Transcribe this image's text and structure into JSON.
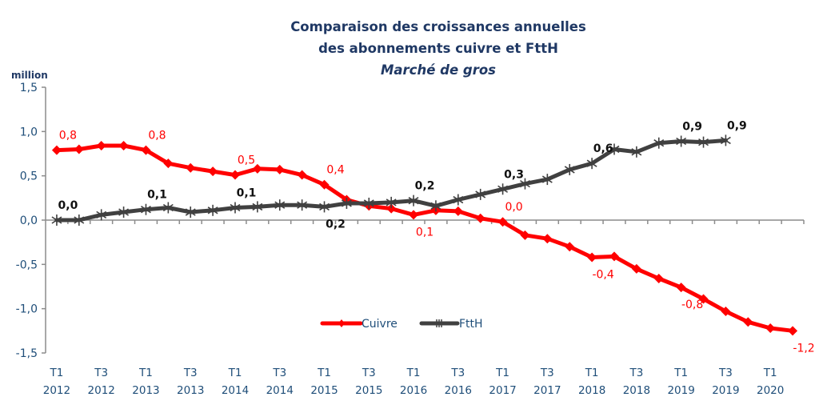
{
  "chart_data": {
    "type": "line",
    "title_lines": [
      "Comparaison des  croissances annuelles",
      "des abonnements cuivre et FttH"
    ],
    "subtitle": "Marché de gros",
    "ylabel": "million",
    "xlabel": "",
    "ylim": [
      -1.5,
      1.5
    ],
    "yticks": [
      -1.5,
      -1.0,
      -0.5,
      0.0,
      0.5,
      1.0,
      1.5
    ],
    "ytick_labels": [
      "-1,5",
      "-1,0",
      "-0,5",
      "0,0",
      "0,5",
      "1,0",
      "1,5"
    ],
    "grid": false,
    "legend_position": "bottom-center",
    "categories": [
      "T1 2012",
      "T2 2012",
      "T3 2012",
      "T4 2012",
      "T1 2013",
      "T2 2013",
      "T3 2013",
      "T4 2013",
      "T1 2014",
      "T2 2014",
      "T3 2014",
      "T4 2014",
      "T1 2015",
      "T2 2015",
      "T3 2015",
      "T4 2015",
      "T1 2016",
      "T2 2016",
      "T3 2016",
      "T4 2016",
      "T1 2017",
      "T2 2017",
      "T3 2017",
      "T4 2017",
      "T1 2018",
      "T2 2018",
      "T3 2018",
      "T4 2018",
      "T1 2019",
      "T2 2019",
      "T3 2019",
      "T4 2019",
      "T1 2020",
      "T2 2020"
    ],
    "xtick_labels": [
      {
        "index": 0,
        "line1": "T1",
        "line2": "2012"
      },
      {
        "index": 2,
        "line1": "T3",
        "line2": "2012"
      },
      {
        "index": 4,
        "line1": "T1",
        "line2": "2013"
      },
      {
        "index": 6,
        "line1": "T3",
        "line2": "2013"
      },
      {
        "index": 8,
        "line1": "T1",
        "line2": "2014"
      },
      {
        "index": 10,
        "line1": "T3",
        "line2": "2014"
      },
      {
        "index": 12,
        "line1": "T1",
        "line2": "2015"
      },
      {
        "index": 14,
        "line1": "T3",
        "line2": "2015"
      },
      {
        "index": 16,
        "line1": "T1",
        "line2": "2016"
      },
      {
        "index": 18,
        "line1": "T3",
        "line2": "2016"
      },
      {
        "index": 20,
        "line1": "T1",
        "line2": "2017"
      },
      {
        "index": 22,
        "line1": "T3",
        "line2": "2017"
      },
      {
        "index": 24,
        "line1": "T1",
        "line2": "2018"
      },
      {
        "index": 26,
        "line1": "T3",
        "line2": "2018"
      },
      {
        "index": 28,
        "line1": "T1",
        "line2": "2019"
      },
      {
        "index": 30,
        "line1": "T3",
        "line2": "2019"
      },
      {
        "index": 32,
        "line1": "T1",
        "line2": "2020"
      }
    ],
    "series": [
      {
        "name": "Cuivre",
        "color": "#ff0000",
        "marker": "diamond",
        "values": [
          0.79,
          0.8,
          0.84,
          0.84,
          0.79,
          0.64,
          0.59,
          0.55,
          0.51,
          0.58,
          0.57,
          0.51,
          0.4,
          0.23,
          0.16,
          0.13,
          0.06,
          0.11,
          0.1,
          0.02,
          -0.02,
          -0.17,
          -0.21,
          -0.3,
          -0.42,
          -0.41,
          -0.55,
          -0.66,
          -0.76,
          -0.89,
          -1.03,
          -1.15,
          -1.22,
          -1.25
        ],
        "data_labels": [
          {
            "index": 0,
            "text": "0,8",
            "pos": "above"
          },
          {
            "index": 4,
            "text": "0,8",
            "pos": "above"
          },
          {
            "index": 8,
            "text": "0,5",
            "pos": "above"
          },
          {
            "index": 12,
            "text": "0,4",
            "pos": "above"
          },
          {
            "index": 16,
            "text": "0,1",
            "pos": "below"
          },
          {
            "index": 20,
            "text": "0,0",
            "pos": "above"
          },
          {
            "index": 24,
            "text": "-0,4",
            "pos": "below"
          },
          {
            "index": 28,
            "text": "-0,8",
            "pos": "below"
          },
          {
            "index": 33,
            "text": "-1,2",
            "pos": "below"
          }
        ]
      },
      {
        "name": "FttH",
        "color": "#404040",
        "marker": "star",
        "values": [
          0.0,
          0.0,
          0.06,
          0.09,
          0.12,
          0.14,
          0.09,
          0.11,
          0.14,
          0.15,
          0.17,
          0.17,
          0.15,
          0.19,
          0.19,
          0.2,
          0.22,
          0.16,
          0.23,
          0.29,
          0.35,
          0.41,
          0.46,
          0.57,
          0.64,
          0.8,
          0.77,
          0.87,
          0.89,
          0.88,
          0.9
        ],
        "data_labels": [
          {
            "index": 0,
            "text": "0,0",
            "pos": "above"
          },
          {
            "index": 4,
            "text": "0,1",
            "pos": "above"
          },
          {
            "index": 8,
            "text": "0,1",
            "pos": "above"
          },
          {
            "index": 12,
            "text": "0,2",
            "pos": "below"
          },
          {
            "index": 16,
            "text": "0,2",
            "pos": "above"
          },
          {
            "index": 20,
            "text": "0,3",
            "pos": "above"
          },
          {
            "index": 24,
            "text": "0,6",
            "pos": "above"
          },
          {
            "index": 28,
            "text": "0,9",
            "pos": "above"
          },
          {
            "index": 30,
            "text": "0,9",
            "pos": "above"
          }
        ]
      }
    ]
  }
}
